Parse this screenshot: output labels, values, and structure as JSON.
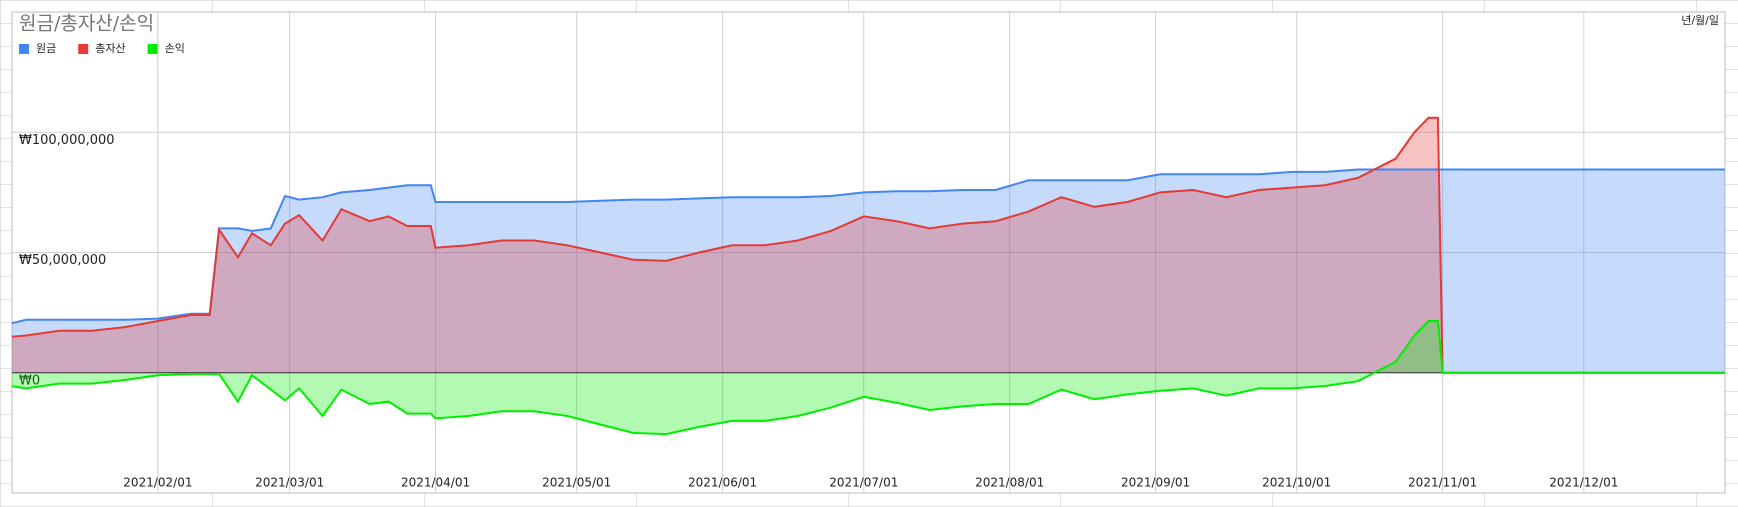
{
  "chart_data": {
    "type": "area",
    "title": "원금/총자산/손익",
    "x_label": "년/월/일",
    "legend": "top-left",
    "grid": true,
    "x": [
      "2021-01-01",
      "2021-01-04",
      "2021-01-11",
      "2021-01-18",
      "2021-01-25",
      "2021-02-01",
      "2021-02-08",
      "2021-02-12",
      "2021-02-14",
      "2021-02-18",
      "2021-02-21",
      "2021-02-25",
      "2021-02-28",
      "2021-03-03",
      "2021-03-08",
      "2021-03-12",
      "2021-03-18",
      "2021-03-22",
      "2021-03-26",
      "2021-03-31",
      "2021-04-01",
      "2021-04-08",
      "2021-04-15",
      "2021-04-22",
      "2021-04-29",
      "2021-05-06",
      "2021-05-13",
      "2021-05-20",
      "2021-05-27",
      "2021-06-03",
      "2021-06-10",
      "2021-06-17",
      "2021-06-24",
      "2021-07-01",
      "2021-07-08",
      "2021-07-15",
      "2021-07-22",
      "2021-07-29",
      "2021-08-05",
      "2021-08-12",
      "2021-08-19",
      "2021-08-26",
      "2021-09-02",
      "2021-09-09",
      "2021-09-16",
      "2021-09-23",
      "2021-09-30",
      "2021-10-07",
      "2021-10-14",
      "2021-10-18",
      "2021-10-22",
      "2021-10-26",
      "2021-10-29",
      "2021-10-31",
      "2021-11-01",
      "2021-12-31"
    ],
    "series": [
      {
        "name": "원금",
        "color": "#4285f4",
        "values": [
          20600000,
          22000000,
          22000000,
          22000000,
          22000000,
          22500000,
          24500000,
          24500000,
          60000000,
          60000000,
          59000000,
          60000000,
          73500000,
          72000000,
          73000000,
          75000000,
          76000000,
          77000000,
          78000000,
          78000000,
          71000000,
          71000000,
          71000000,
          71000000,
          71000000,
          71500000,
          72000000,
          72000000,
          72500000,
          73000000,
          73000000,
          73000000,
          73500000,
          75000000,
          75500000,
          75500000,
          76000000,
          76000000,
          80000000,
          80000000,
          80000000,
          80000000,
          82500000,
          82500000,
          82500000,
          82500000,
          83500000,
          83500000,
          84500000,
          84500000,
          84500000,
          84500000,
          84500000,
          84500000,
          84500000,
          84500000
        ]
      },
      {
        "name": "총자산",
        "color": "#e53935",
        "values": [
          15000000,
          15500000,
          17500000,
          17500000,
          19000000,
          21500000,
          24000000,
          24000000,
          59500000,
          48000000,
          58000000,
          53000000,
          62000000,
          65500000,
          55000000,
          68000000,
          63000000,
          65000000,
          61000000,
          61000000,
          52000000,
          53000000,
          55000000,
          55000000,
          53000000,
          50000000,
          47000000,
          46500000,
          50000000,
          53000000,
          53000000,
          55000000,
          59000000,
          65000000,
          63000000,
          60000000,
          62000000,
          63000000,
          67000000,
          73000000,
          69000000,
          71000000,
          75000000,
          76000000,
          73000000,
          76000000,
          77000000,
          78000000,
          81000000,
          85000000,
          89000000,
          100000000,
          106000000,
          106000000,
          0,
          0
        ]
      },
      {
        "name": "손익",
        "color": "#00ee00",
        "values": [
          -5600000,
          -6500000,
          -4500000,
          -4500000,
          -3000000,
          -1000000,
          -500000,
          -500000,
          -500000,
          -12000000,
          -1000000,
          -7000000,
          -11500000,
          -6500000,
          -18000000,
          -7000000,
          -13000000,
          -12000000,
          -17000000,
          -17000000,
          -19000000,
          -18000000,
          -16000000,
          -16000000,
          -18000000,
          -21500000,
          -25000000,
          -25500000,
          -22500000,
          -20000000,
          -20000000,
          -18000000,
          -14500000,
          -10000000,
          -12500000,
          -15500000,
          -14000000,
          -13000000,
          -13000000,
          -7000000,
          -11000000,
          -9000000,
          -7500000,
          -6500000,
          -9500000,
          -6500000,
          -6500000,
          -5500000,
          -3500000,
          500000,
          4500000,
          15500000,
          21500000,
          21500000,
          0,
          0
        ]
      }
    ],
    "xlim": [
      "2021-01-01",
      "2021-12-31"
    ],
    "xticks": [
      {
        "value": "2021-02-01",
        "label": "2021/02/01"
      },
      {
        "value": "2021-03-01",
        "label": "2021/03/01"
      },
      {
        "value": "2021-04-01",
        "label": "2021/04/01"
      },
      {
        "value": "2021-05-01",
        "label": "2021/05/01"
      },
      {
        "value": "2021-06-01",
        "label": "2021/06/01"
      },
      {
        "value": "2021-07-01",
        "label": "2021/07/01"
      },
      {
        "value": "2021-08-01",
        "label": "2021/08/01"
      },
      {
        "value": "2021-09-01",
        "label": "2021/09/01"
      },
      {
        "value": "2021-10-01",
        "label": "2021/10/01"
      },
      {
        "value": "2021-11-01",
        "label": "2021/11/01"
      },
      {
        "value": "2021-12-01",
        "label": "2021/12/01"
      }
    ],
    "ylim": [
      -50000000,
      150000000
    ],
    "yticks": [
      {
        "value": 0,
        "label": "₩0"
      },
      {
        "value": 50000000,
        "label": "₩50,000,000"
      },
      {
        "value": 100000000,
        "label": "₩100,000,000"
      }
    ]
  }
}
